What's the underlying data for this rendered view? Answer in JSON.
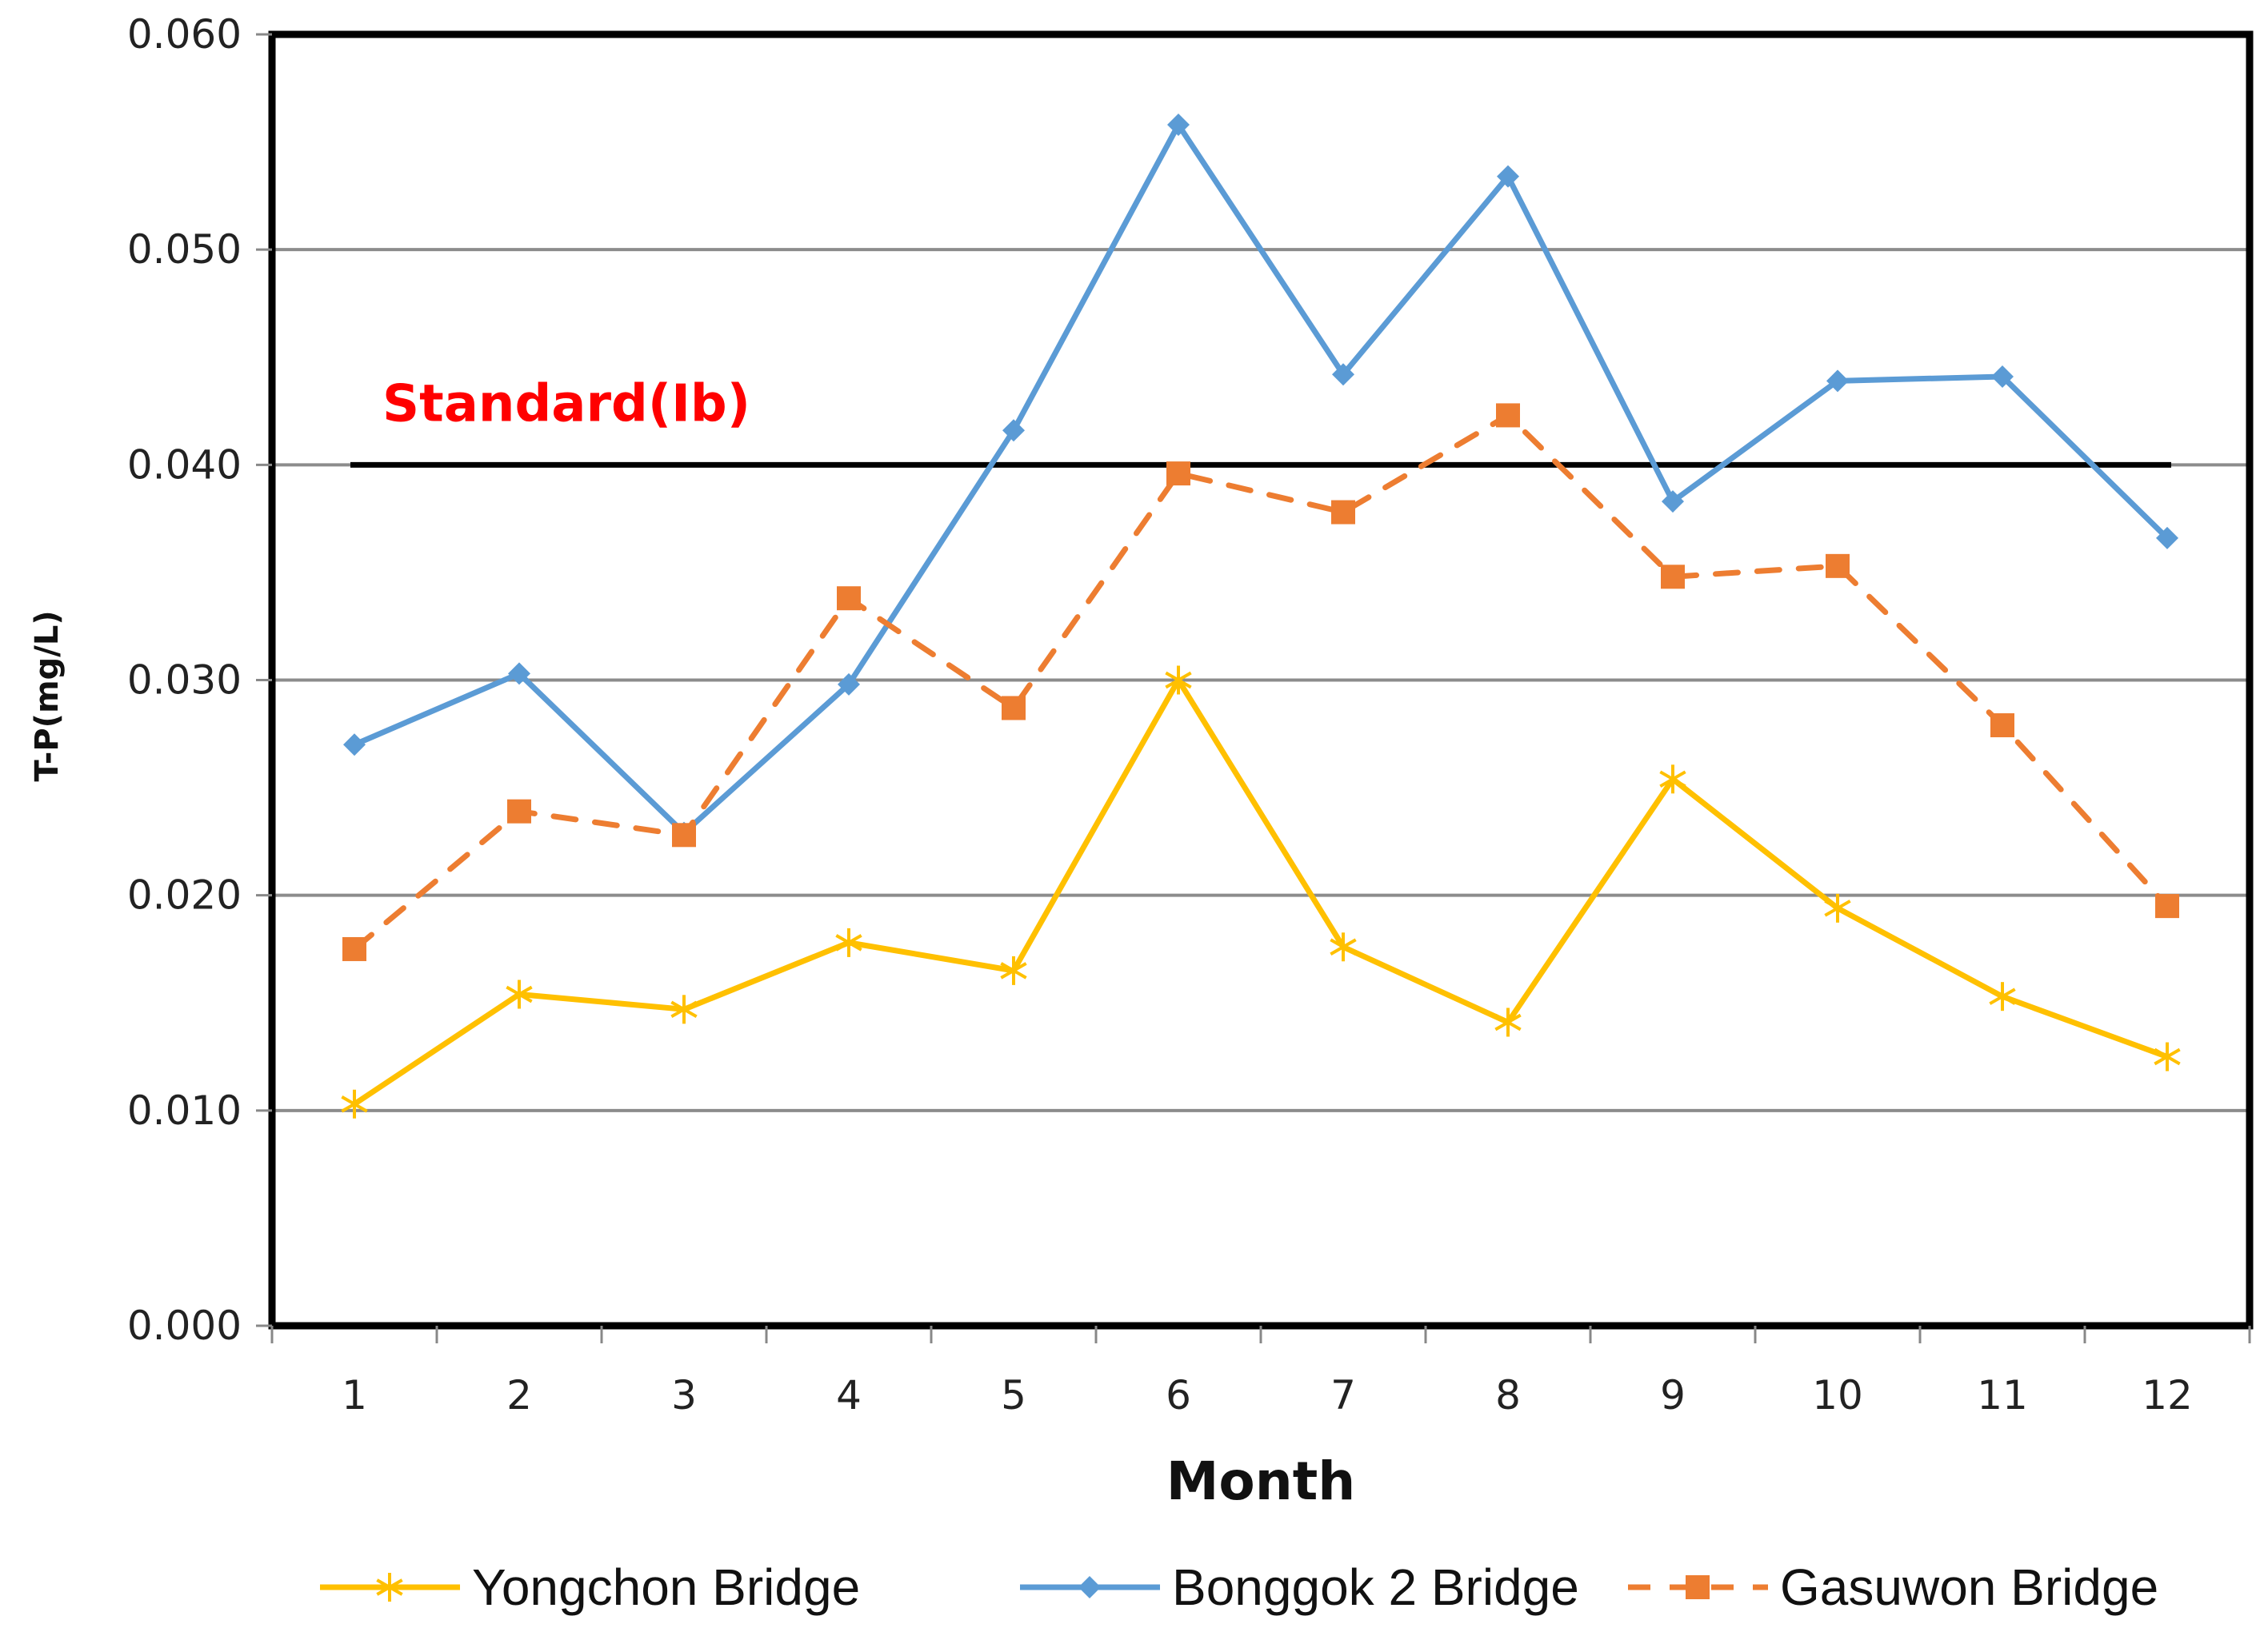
{
  "chart_data": {
    "type": "line",
    "title": "",
    "xlabel": "Month",
    "ylabel": "T-P(mg/L)",
    "x": [
      1,
      2,
      3,
      4,
      5,
      6,
      7,
      8,
      9,
      10,
      11,
      12
    ],
    "x_tick_labels": [
      "1",
      "2",
      "3",
      "4",
      "5",
      "6",
      "7",
      "8",
      "9",
      "10",
      "11",
      "12"
    ],
    "ylim": [
      0.0,
      0.06
    ],
    "y_ticks": [
      0.0,
      0.01,
      0.02,
      0.03,
      0.04,
      0.05,
      0.06
    ],
    "y_tick_labels": [
      "0.000",
      "0.010",
      "0.020",
      "0.030",
      "0.040",
      "0.050",
      "0.060"
    ],
    "grid": "horizontal",
    "legend_position": "bottom",
    "series": [
      {
        "name": "Yongchon Bridge",
        "color": "#FFC000",
        "marker": "asterisk",
        "line_style": "solid",
        "values": [
          0.0103,
          0.0154,
          0.0147,
          0.0178,
          0.0165,
          0.03,
          0.0176,
          0.0141,
          0.0254,
          0.0194,
          0.0153,
          0.0125
        ]
      },
      {
        "name": "Bonggok 2 Bridge",
        "color": "#5B9BD5",
        "marker": "diamond",
        "line_style": "solid",
        "values": [
          0.027,
          0.0303,
          0.0229,
          0.0298,
          0.0416,
          0.0558,
          0.0442,
          0.0534,
          0.0383,
          0.0439,
          0.0441,
          0.0366
        ]
      },
      {
        "name": "Gasuwon Bridge",
        "color": "#ED7D31",
        "marker": "square",
        "line_style": "dashed",
        "values": [
          0.0175,
          0.0239,
          0.0228,
          0.0338,
          0.0287,
          0.0396,
          0.0378,
          0.0423,
          0.0348,
          0.0353,
          0.0279,
          0.0195
        ]
      }
    ],
    "reference_line": {
      "label": "Standard(Ib)",
      "value": 0.04,
      "color": "#000000",
      "label_color": "#FF0000"
    }
  }
}
